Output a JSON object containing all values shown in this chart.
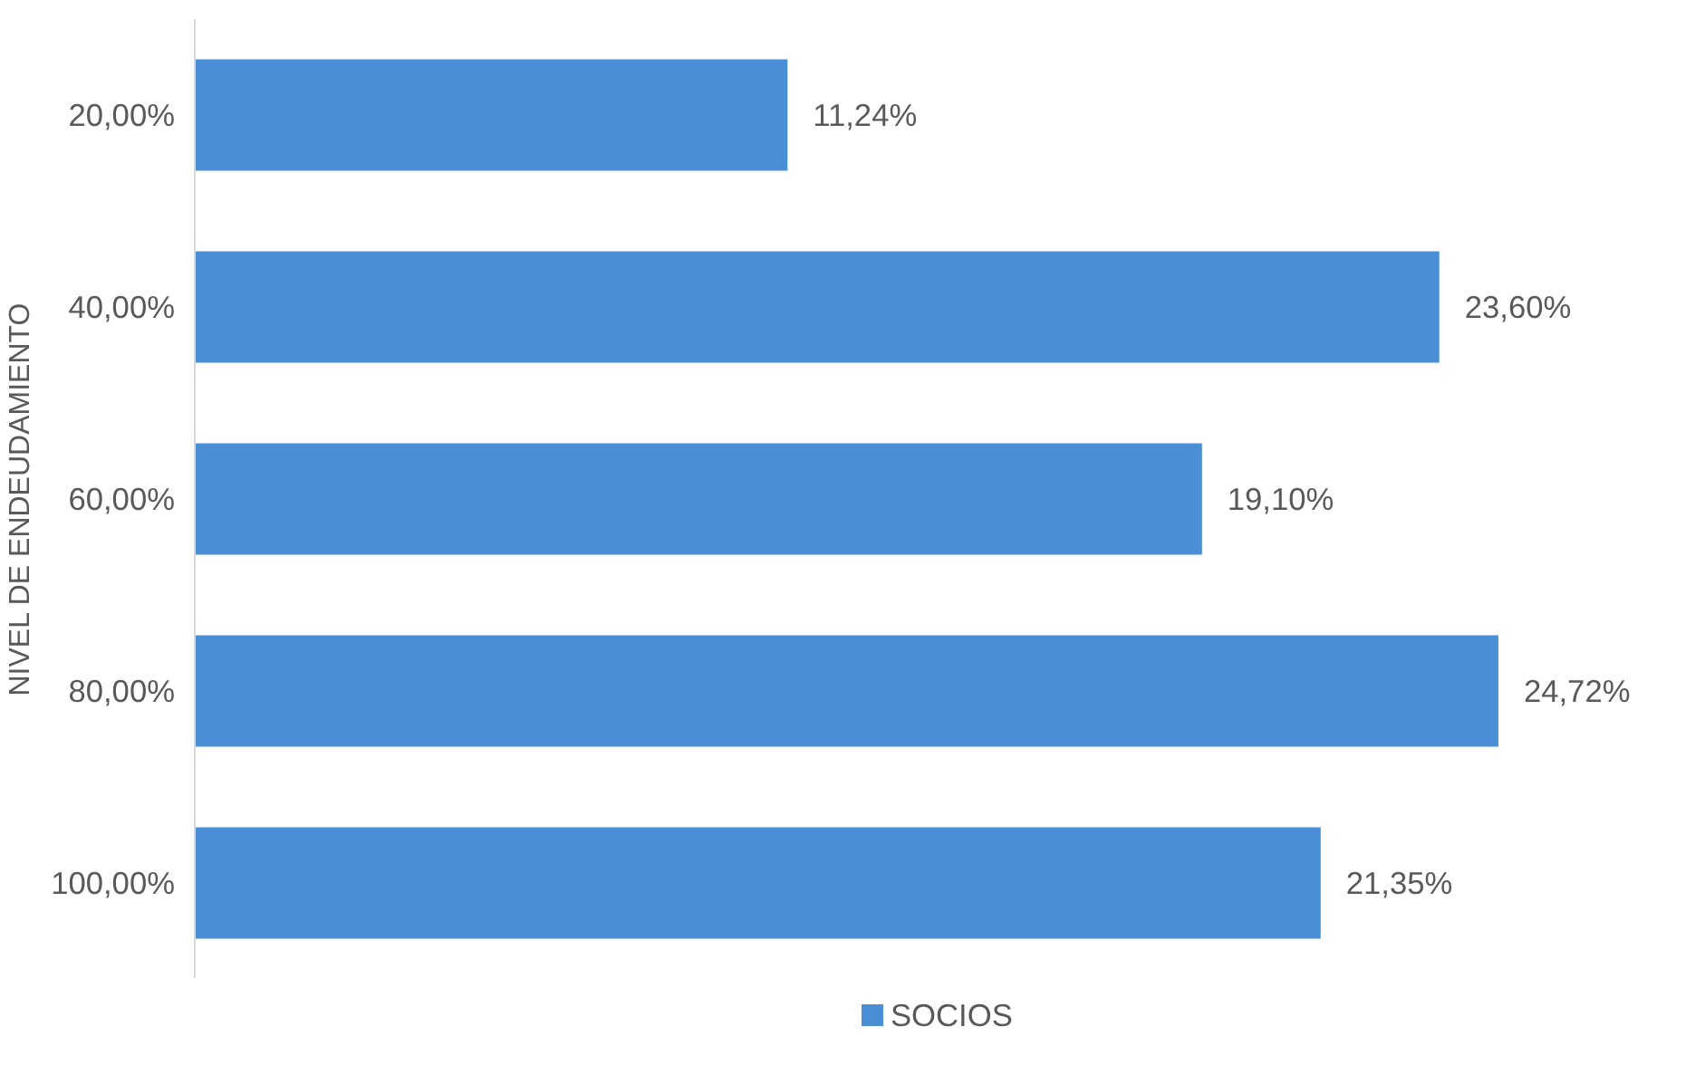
{
  "chart_data": {
    "type": "bar",
    "orientation": "horizontal",
    "ylabel": "NIVEL DE ENDEUDAMIENTO",
    "categories": [
      "20,00%",
      "40,00%",
      "60,00%",
      "80,00%",
      "100,00%"
    ],
    "series": [
      {
        "name": "SOCIOS",
        "color": "#4a8fd6",
        "values": [
          11.24,
          23.6,
          19.1,
          24.72,
          21.35
        ],
        "value_labels": [
          "11,24%",
          "23,60%",
          "19,10%",
          "24,72%",
          "21,35%"
        ]
      }
    ],
    "legend": "bottom",
    "grid": false,
    "tick_labels": "y"
  }
}
